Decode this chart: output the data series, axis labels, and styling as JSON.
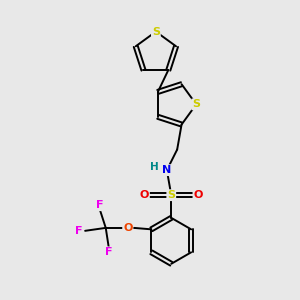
{
  "background_color": "#e8e8e8",
  "figsize": [
    3.0,
    3.0
  ],
  "dpi": 100,
  "atom_colors": {
    "S": "#cccc00",
    "N": "#0000ee",
    "O": "#ee0000",
    "F": "#ee00ee",
    "O_ether": "#ee4400",
    "C": "#000000",
    "H": "#008888"
  },
  "lw": 1.4
}
